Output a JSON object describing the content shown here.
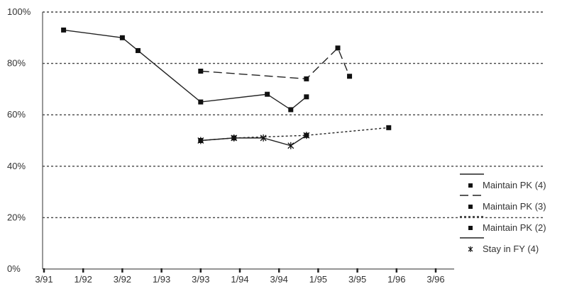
{
  "chart_data": {
    "type": "line",
    "title": "",
    "xlabel": "",
    "ylabel": "",
    "x_categories": [
      "3/91",
      "1/92",
      "3/92",
      "1/93",
      "3/93",
      "1/94",
      "3/94",
      "1/95",
      "3/95",
      "1/96",
      "3/96"
    ],
    "y_ticks": [
      "0%",
      "20%",
      "40%",
      "60%",
      "80%",
      "100%"
    ],
    "ylim": [
      0,
      100
    ],
    "grid": "horizontal dashed",
    "legend_position": "right",
    "series": [
      {
        "name": "Maintain PK (4)",
        "line_style": "solid",
        "marker": "square",
        "points": [
          {
            "x": 0.5,
            "y": 93
          },
          {
            "x": 2.0,
            "y": 90
          },
          {
            "x": 2.4,
            "y": 85
          },
          {
            "x": 4.0,
            "y": 65
          },
          {
            "x": 5.7,
            "y": 68
          },
          {
            "x": 6.3,
            "y": 62
          },
          {
            "x": 6.7,
            "y": 67
          }
        ]
      },
      {
        "name": "Maintain PK (3)",
        "line_style": "dashed",
        "marker": "square",
        "points": [
          {
            "x": 4.0,
            "y": 77
          },
          {
            "x": 6.7,
            "y": 74
          },
          {
            "x": 7.5,
            "y": 86
          },
          {
            "x": 7.8,
            "y": 75
          }
        ]
      },
      {
        "name": "Maintain PK (2)",
        "line_style": "dotted",
        "marker": "square",
        "points": [
          {
            "x": 4.0,
            "y": 50
          },
          {
            "x": 4.85,
            "y": 51
          },
          {
            "x": 6.7,
            "y": 52
          },
          {
            "x": 8.8,
            "y": 55
          }
        ]
      },
      {
        "name": "Stay in FY (4)",
        "line_style": "solid",
        "marker": "star",
        "points": [
          {
            "x": 4.0,
            "y": 50
          },
          {
            "x": 4.85,
            "y": 51
          },
          {
            "x": 5.6,
            "y": 51
          },
          {
            "x": 6.3,
            "y": 48
          },
          {
            "x": 6.7,
            "y": 52
          }
        ]
      }
    ]
  }
}
